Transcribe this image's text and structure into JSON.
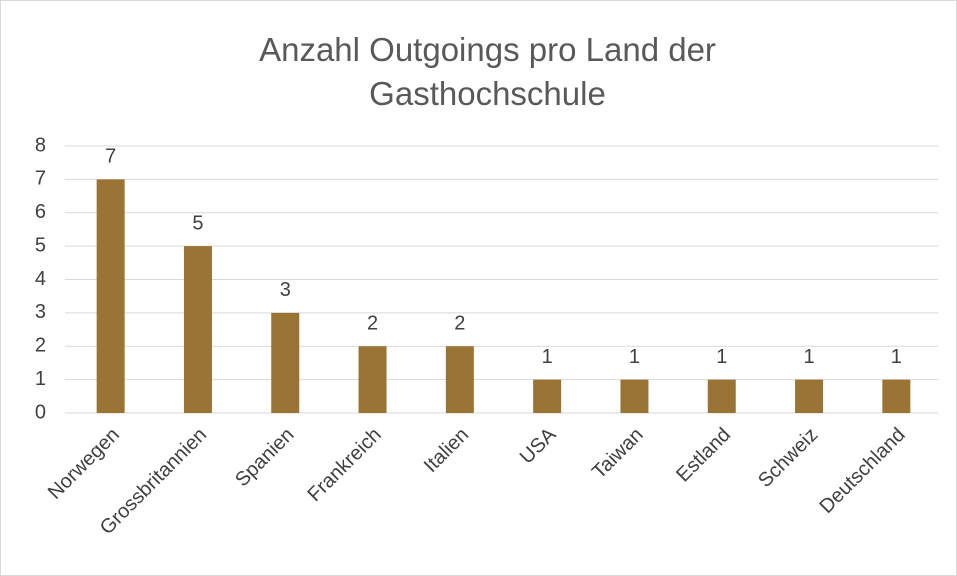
{
  "chart_data": {
    "type": "bar",
    "title": "Anzahl Outgoings pro Land der Gasthochschule",
    "categories": [
      "Norwegen",
      "Grossbritannien",
      "Spanien",
      "Frankreich",
      "Italien",
      "USA",
      "Taiwan",
      "Estland",
      "Schweiz",
      "Deutschland"
    ],
    "values": [
      7,
      5,
      3,
      2,
      2,
      1,
      1,
      1,
      1,
      1
    ],
    "color": "#9a7434",
    "ylim": [
      0,
      8
    ],
    "yticks": [
      0,
      1,
      2,
      3,
      4,
      5,
      6,
      7,
      8
    ],
    "grid": true
  }
}
